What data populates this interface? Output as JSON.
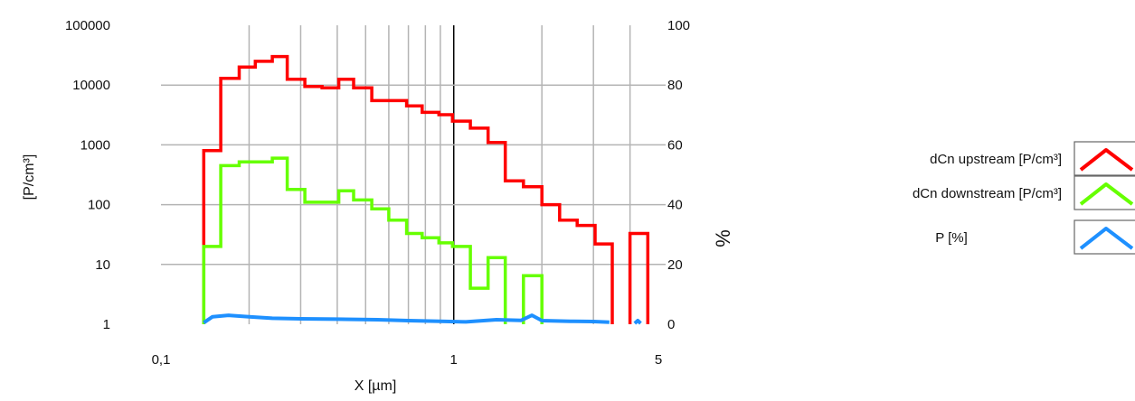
{
  "chart_data": {
    "type": "line",
    "title": "",
    "xlabel": "X [µm]",
    "ylabel_left": "[P/cm³]",
    "ylabel_right": "%",
    "x_scale": "log",
    "y_left_scale": "log",
    "xlim": [
      0.1,
      5
    ],
    "ylim_left": [
      1,
      100000
    ],
    "ylim_right": [
      0,
      100
    ],
    "grid": true,
    "legend_position": "right",
    "x_tick_labels": [
      {
        "value": 0.1,
        "label": "0,1"
      },
      {
        "value": 1,
        "label": "1"
      },
      {
        "value": 5,
        "label": "5"
      }
    ],
    "x_grid_values": [
      0.2,
      0.3,
      0.4,
      0.5,
      0.6,
      0.7,
      0.8,
      0.9,
      2,
      3,
      4
    ],
    "x_major_line": 1,
    "y_left_ticks": [
      {
        "value": 1,
        "label": "1"
      },
      {
        "value": 10,
        "label": "10"
      },
      {
        "value": 100,
        "label": "100"
      },
      {
        "value": 1000,
        "label": "1000"
      },
      {
        "value": 10000,
        "label": "10000"
      },
      {
        "value": 100000,
        "label": "100000"
      }
    ],
    "y_right_ticks": [
      {
        "value": 0,
        "label": "0"
      },
      {
        "value": 20,
        "label": "20"
      },
      {
        "value": 40,
        "label": "40"
      },
      {
        "value": 60,
        "label": "60"
      },
      {
        "value": 80,
        "label": "80"
      },
      {
        "value": 100,
        "label": "100"
      }
    ],
    "series": [
      {
        "name": "dCn upstream [P/cm³]",
        "color": "#ff0000",
        "axis": "left",
        "style": "step",
        "points": [
          [
            0.14,
            1
          ],
          [
            0.14,
            800
          ],
          [
            0.16,
            800
          ],
          [
            0.16,
            13000
          ],
          [
            0.185,
            13000
          ],
          [
            0.185,
            20000
          ],
          [
            0.21,
            20000
          ],
          [
            0.21,
            25000
          ],
          [
            0.24,
            25000
          ],
          [
            0.24,
            30000
          ],
          [
            0.27,
            30000
          ],
          [
            0.27,
            12500
          ],
          [
            0.31,
            12500
          ],
          [
            0.31,
            9500
          ],
          [
            0.355,
            9500
          ],
          [
            0.355,
            9000
          ],
          [
            0.405,
            9000
          ],
          [
            0.405,
            12500
          ],
          [
            0.455,
            12500
          ],
          [
            0.455,
            9000
          ],
          [
            0.525,
            9000
          ],
          [
            0.525,
            5500
          ],
          [
            0.69,
            5500
          ],
          [
            0.69,
            4500
          ],
          [
            0.78,
            4500
          ],
          [
            0.78,
            3500
          ],
          [
            0.89,
            3500
          ],
          [
            0.89,
            3200
          ],
          [
            0.99,
            3200
          ],
          [
            0.99,
            2500
          ],
          [
            1.14,
            2500
          ],
          [
            1.14,
            1900
          ],
          [
            1.31,
            1900
          ],
          [
            1.31,
            1100
          ],
          [
            1.5,
            1100
          ],
          [
            1.5,
            250
          ],
          [
            1.73,
            250
          ],
          [
            1.73,
            200
          ],
          [
            2.0,
            200
          ],
          [
            2.0,
            100
          ],
          [
            2.3,
            100
          ],
          [
            2.3,
            55
          ],
          [
            2.64,
            55
          ],
          [
            2.64,
            45
          ],
          [
            3.04,
            45
          ],
          [
            3.04,
            22
          ],
          [
            3.48,
            22
          ],
          [
            3.48,
            1
          ]
        ]
      },
      {
        "name": "dCn upstream [P/cm³]",
        "color": "#ff0000",
        "axis": "left",
        "style": "step",
        "points": [
          [
            4.0,
            1
          ],
          [
            4.0,
            33
          ],
          [
            4.6,
            33
          ],
          [
            4.6,
            1
          ]
        ]
      },
      {
        "name": "dCn downstream [P/cm³]",
        "color": "#66ff00",
        "axis": "left",
        "style": "step",
        "points": [
          [
            0.14,
            1
          ],
          [
            0.14,
            20
          ],
          [
            0.16,
            20
          ],
          [
            0.16,
            450
          ],
          [
            0.185,
            450
          ],
          [
            0.185,
            520
          ],
          [
            0.24,
            520
          ],
          [
            0.24,
            600
          ],
          [
            0.27,
            600
          ],
          [
            0.27,
            180
          ],
          [
            0.31,
            180
          ],
          [
            0.31,
            110
          ],
          [
            0.405,
            110
          ],
          [
            0.405,
            170
          ],
          [
            0.455,
            170
          ],
          [
            0.455,
            120
          ],
          [
            0.525,
            120
          ],
          [
            0.525,
            85
          ],
          [
            0.6,
            85
          ],
          [
            0.6,
            55
          ],
          [
            0.69,
            55
          ],
          [
            0.69,
            33
          ],
          [
            0.78,
            33
          ],
          [
            0.78,
            28
          ],
          [
            0.89,
            28
          ],
          [
            0.89,
            23
          ],
          [
            0.99,
            23
          ],
          [
            0.99,
            20
          ],
          [
            1.14,
            20
          ],
          [
            1.14,
            4
          ],
          [
            1.31,
            4
          ],
          [
            1.31,
            13
          ],
          [
            1.5,
            13
          ],
          [
            1.5,
            1
          ]
        ]
      },
      {
        "name": "dCn downstream [P/cm³]",
        "color": "#66ff00",
        "axis": "left",
        "style": "step",
        "points": [
          [
            1.73,
            1
          ],
          [
            1.73,
            6.5
          ],
          [
            2.0,
            6.5
          ],
          [
            2.0,
            1
          ]
        ]
      },
      {
        "name": "P [%]",
        "color": "#1e90ff",
        "axis": "right",
        "style": "line",
        "points": [
          [
            0.14,
            0.5
          ],
          [
            0.15,
            2.5
          ],
          [
            0.17,
            3.0
          ],
          [
            0.2,
            2.5
          ],
          [
            0.24,
            2.0
          ],
          [
            0.3,
            1.8
          ],
          [
            0.4,
            1.7
          ],
          [
            0.55,
            1.5
          ],
          [
            0.7,
            1.2
          ],
          [
            0.9,
            1.0
          ],
          [
            1.1,
            0.8
          ],
          [
            1.4,
            1.5
          ],
          [
            1.7,
            1.3
          ],
          [
            1.85,
            3.0
          ],
          [
            2.0,
            1.2
          ],
          [
            2.5,
            1.0
          ],
          [
            3.0,
            0.9
          ],
          [
            3.4,
            0.7
          ]
        ]
      },
      {
        "name": "P [%]",
        "color": "#1e90ff",
        "axis": "right",
        "style": "line",
        "points": [
          [
            4.15,
            0.3
          ],
          [
            4.25,
            1.2
          ],
          [
            4.35,
            0.3
          ]
        ]
      }
    ],
    "legend": [
      {
        "label": "dCn upstream [P/cm³]",
        "color": "#ff0000"
      },
      {
        "label": "dCn downstream [P/cm³]",
        "color": "#66ff00"
      },
      {
        "label": "P [%]",
        "color": "#1e90ff"
      }
    ]
  }
}
